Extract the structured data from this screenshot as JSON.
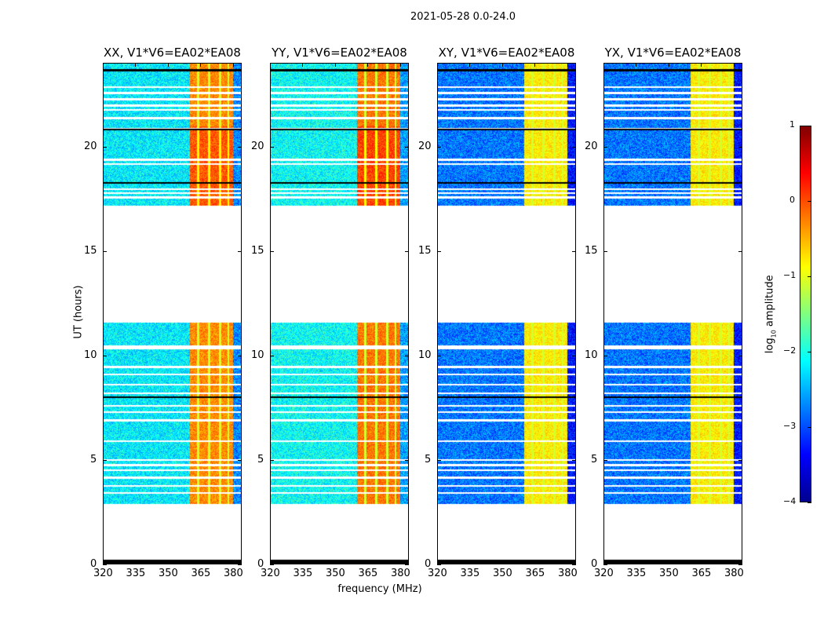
{
  "chart_data": {
    "type": "heatmap",
    "title": "2021-05-28 0.0-24.0",
    "xlabel": "frequency (MHz)",
    "ylabel": "UT (hours)",
    "xlim": [
      320,
      384
    ],
    "ylim": [
      0,
      24
    ],
    "xticks": [
      "320",
      "335",
      "350",
      "365",
      "380"
    ],
    "xtick_values": [
      320,
      335,
      350,
      365,
      380
    ],
    "yticks": [
      "0",
      "5",
      "10",
      "15",
      "20"
    ],
    "ytick_values": [
      0,
      5,
      10,
      15,
      20
    ],
    "panels": [
      {
        "title": "XX, V1*V6=EA02*EA08",
        "base_level": -2.2,
        "band_level": -0.3
      },
      {
        "title": "YY, V1*V6=EA02*EA08",
        "base_level": -2.1,
        "band_level": -0.2
      },
      {
        "title": "XY, V1*V6=EA02*EA08",
        "base_level": -2.8,
        "band_level": -0.8
      },
      {
        "title": "YX, V1*V6=EA02*EA08",
        "base_level": -2.8,
        "band_level": -0.8
      }
    ],
    "strong_band_mhz": [
      360,
      380
    ],
    "data_time_segments_hours": [
      [
        0,
        0.2
      ],
      [
        2.9,
        4.1
      ],
      [
        4.2,
        5.3
      ],
      [
        5.3,
        9.4
      ],
      [
        9.5,
        10.3
      ],
      [
        10.5,
        11.6
      ],
      [
        17.2,
        24
      ]
    ],
    "colorbar": {
      "label_prefix": "log",
      "label_sub": "10",
      "label_suffix": " amplitude",
      "colormap": "jet",
      "range": [
        -4,
        1
      ],
      "ticks": [
        "1",
        "0",
        "−1",
        "−2",
        "−3",
        "−4"
      ],
      "tick_values": [
        1,
        0,
        -1,
        -2,
        -3,
        -4
      ]
    }
  }
}
